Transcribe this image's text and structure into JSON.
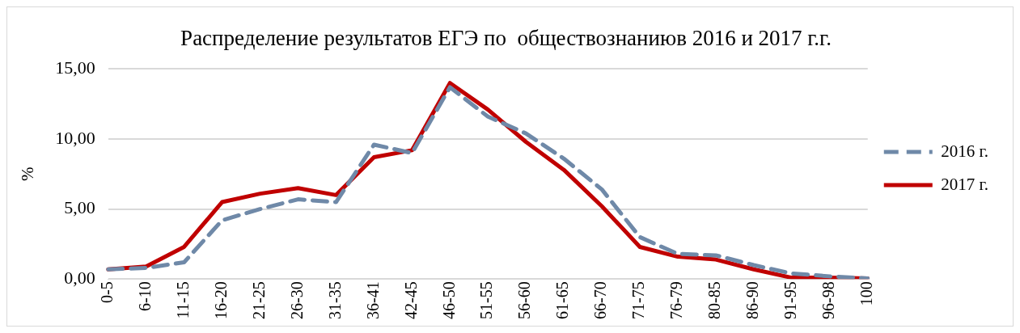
{
  "chart_data": {
    "type": "line",
    "title": "Распределение результатов ЕГЭ по  обществознаниюв 2016 и 2017 г.г.",
    "ylabel": "%",
    "categories": [
      "0-5",
      "6-10",
      "11-15",
      "16-20",
      "21-25",
      "26-30",
      "31-35",
      "36-41",
      "42-45",
      "46-50",
      "51-55",
      "56-60",
      "61-65",
      "66-70",
      "71-75",
      "76-79",
      "80-85",
      "86-90",
      "91-95",
      "96-98",
      "100"
    ],
    "series": [
      {
        "name": "2016 г.",
        "color": "#6f89a8",
        "line_style": "dashed",
        "values": [
          0.7,
          0.8,
          1.2,
          4.2,
          5.0,
          5.7,
          5.5,
          9.6,
          9.0,
          13.7,
          11.6,
          10.4,
          8.6,
          6.4,
          3.0,
          1.8,
          1.7,
          1.0,
          0.4,
          0.2,
          0.05
        ]
      },
      {
        "name": "2017 г.",
        "color": "#c00000",
        "line_style": "solid",
        "values": [
          0.7,
          0.9,
          2.3,
          5.5,
          6.1,
          6.5,
          6.0,
          8.7,
          9.2,
          14.0,
          12.1,
          9.8,
          7.8,
          5.2,
          2.3,
          1.6,
          1.4,
          0.7,
          0.1,
          0.1,
          0.05
        ]
      }
    ],
    "ylim": [
      0,
      15
    ],
    "yticks": [
      {
        "value": 0,
        "label": "0,00"
      },
      {
        "value": 5,
        "label": "5,00"
      },
      {
        "value": 10,
        "label": "10,00"
      },
      {
        "value": 15,
        "label": "15,00"
      }
    ],
    "grid": "y",
    "legend": "right",
    "marker": "none"
  }
}
